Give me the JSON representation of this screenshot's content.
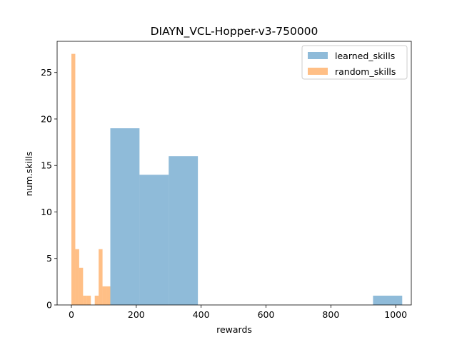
{
  "chart_data": {
    "type": "bar",
    "title": "DIAYN_VCL-Hopper-v3-750000",
    "xlabel": "rewards",
    "ylabel": "num.skills",
    "xlim": [
      -44,
      1048
    ],
    "ylim": [
      0,
      28.35
    ],
    "xticks": [
      0,
      200,
      400,
      600,
      800,
      1000
    ],
    "yticks": [
      0,
      5,
      10,
      15,
      20,
      25
    ],
    "grid": false,
    "legend_position": "top-right",
    "series": [
      {
        "name": "learned_skills",
        "color": "#1f77b4",
        "alpha": 0.5,
        "bins": [
          {
            "x0": 120,
            "x1": 210,
            "count": 19
          },
          {
            "x0": 210,
            "x1": 300,
            "count": 14
          },
          {
            "x0": 300,
            "x1": 390,
            "count": 16
          },
          {
            "x0": 390,
            "x1": 480,
            "count": 0
          },
          {
            "x0": 480,
            "x1": 570,
            "count": 0
          },
          {
            "x0": 570,
            "x1": 660,
            "count": 0
          },
          {
            "x0": 660,
            "x1": 750,
            "count": 0
          },
          {
            "x0": 750,
            "x1": 840,
            "count": 0
          },
          {
            "x0": 840,
            "x1": 930,
            "count": 0
          },
          {
            "x0": 930,
            "x1": 1020,
            "count": 1
          }
        ]
      },
      {
        "name": "random_skills",
        "color": "#ff7f0e",
        "alpha": 0.5,
        "bins": [
          {
            "x0": 0,
            "x1": 12,
            "count": 27
          },
          {
            "x0": 12,
            "x1": 24,
            "count": 6
          },
          {
            "x0": 24,
            "x1": 36,
            "count": 4
          },
          {
            "x0": 36,
            "x1": 48,
            "count": 1
          },
          {
            "x0": 48,
            "x1": 60,
            "count": 1
          },
          {
            "x0": 60,
            "x1": 72,
            "count": 0
          },
          {
            "x0": 72,
            "x1": 84,
            "count": 1
          },
          {
            "x0": 84,
            "x1": 96,
            "count": 6
          },
          {
            "x0": 96,
            "x1": 108,
            "count": 2
          },
          {
            "x0": 108,
            "x1": 120,
            "count": 2
          }
        ]
      }
    ]
  }
}
